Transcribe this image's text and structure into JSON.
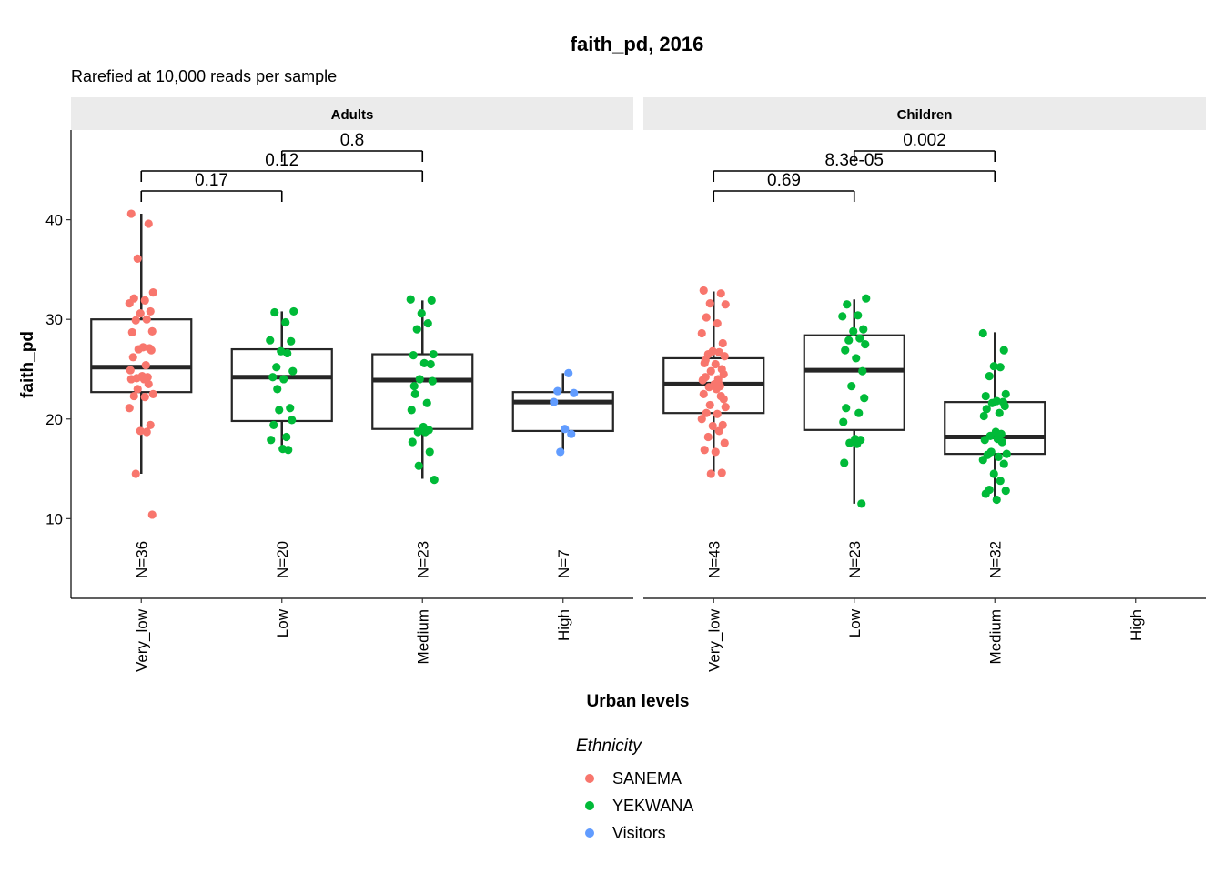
{
  "chart_data": {
    "type": "box",
    "title": "faith_pd, 2016",
    "subtitle": "Rarefied at 10,000 reads per sample",
    "xlabel": "Urban levels",
    "ylabel": "faith_pd",
    "ylim": [
      2,
      49
    ],
    "yticks": [
      10,
      20,
      30,
      40
    ],
    "categories": [
      "Very_low",
      "Low",
      "Medium",
      "High"
    ],
    "legend": {
      "title": "Ethnicity",
      "position": "bottom",
      "items": [
        {
          "name": "SANEMA",
          "color": "#F8766D"
        },
        {
          "name": "YEKWANA",
          "color": "#00BA38"
        },
        {
          "name": "Visitors",
          "color": "#619CFF"
        }
      ]
    },
    "panels": [
      {
        "label": "Adults",
        "groups": [
          {
            "category": "Very_low",
            "n_label": "N=36",
            "ethnicity": "SANEMA",
            "box": {
              "min": 14.5,
              "q1": 22.7,
              "median": 25.2,
              "q3": 30.0,
              "max": 40.6
            },
            "points": [
              40.6,
              39.6,
              36.1,
              32.7,
              32.1,
              31.9,
              31.6,
              30.8,
              30.6,
              30.0,
              29.9,
              28.8,
              28.7,
              27.2,
              27.1,
              27.0,
              26.9,
              26.2,
              25.4,
              24.9,
              24.3,
              24.2,
              24.1,
              24.0,
              24.0,
              23.5,
              23.0,
              22.5,
              22.3,
              22.2,
              21.1,
              19.4,
              18.8,
              18.7,
              14.5,
              10.4
            ]
          },
          {
            "category": "Low",
            "n_label": "N=20",
            "ethnicity": "YEKWANA",
            "box": {
              "min": 17.0,
              "q1": 19.8,
              "median": 24.2,
              "q3": 27.0,
              "max": 30.8
            },
            "points": [
              30.8,
              30.7,
              29.7,
              27.9,
              27.8,
              26.8,
              26.6,
              25.2,
              24.8,
              24.2,
              24.0,
              21.1,
              20.9,
              19.9,
              19.4,
              18.2,
              17.9,
              17.0,
              16.9,
              23.0
            ]
          },
          {
            "category": "Medium",
            "n_label": "N=23",
            "ethnicity": "YEKWANA",
            "box": {
              "min": 14.0,
              "q1": 19.0,
              "median": 23.9,
              "q3": 26.5,
              "max": 31.9
            },
            "points": [
              32.0,
              31.9,
              30.6,
              29.6,
              29.0,
              26.5,
              26.4,
              25.6,
              25.5,
              24.0,
              23.8,
              23.3,
              21.6,
              20.9,
              19.2,
              18.9,
              18.7,
              18.7,
              17.7,
              16.7,
              15.3,
              13.9,
              22.5
            ]
          },
          {
            "category": "High",
            "n_label": "N=7",
            "ethnicity": "Visitors",
            "box": {
              "min": 16.8,
              "q1": 18.8,
              "median": 21.7,
              "q3": 22.7,
              "max": 24.6
            },
            "points": [
              24.6,
              22.8,
              22.6,
              21.7,
              19.0,
              18.5,
              16.7
            ]
          }
        ],
        "comparisons": [
          {
            "from": "Medium",
            "to": "Low",
            "p": "0.8"
          },
          {
            "from": "Very_low",
            "to": "Medium",
            "p": "0.12"
          },
          {
            "from": "Very_low",
            "to": "Low",
            "p": "0.17"
          }
        ]
      },
      {
        "label": "Children",
        "groups": [
          {
            "category": "Very_low",
            "n_label": "N=43",
            "ethnicity": "SANEMA",
            "box": {
              "min": 14.6,
              "q1": 20.6,
              "median": 23.5,
              "q3": 26.1,
              "max": 32.8
            },
            "points": [
              32.9,
              32.6,
              31.6,
              31.5,
              30.2,
              29.6,
              28.6,
              27.6,
              26.8,
              26.7,
              26.5,
              26.3,
              25.6,
              25.5,
              25.0,
              24.8,
              24.5,
              24.2,
              24.0,
              23.9,
              23.5,
              23.3,
              23.2,
              23.0,
              22.5,
              22.3,
              21.4,
              21.2,
              20.6,
              20.5,
              20.0,
              19.4,
              19.3,
              18.8,
              18.2,
              17.6,
              16.9,
              16.7,
              14.6,
              14.5,
              22.0,
              25.9,
              23.7
            ]
          },
          {
            "category": "Low",
            "n_label": "N=23",
            "ethnicity": "YEKWANA",
            "box": {
              "min": 11.5,
              "q1": 18.9,
              "median": 24.9,
              "q3": 28.4,
              "max": 32.0
            },
            "points": [
              32.1,
              31.5,
              30.4,
              30.3,
              29.0,
              28.8,
              28.1,
              27.9,
              27.5,
              26.9,
              26.1,
              24.8,
              23.3,
              22.1,
              21.1,
              20.6,
              19.7,
              18.0,
              17.9,
              17.6,
              17.5,
              15.6,
              11.5
            ]
          },
          {
            "category": "Medium",
            "n_label": "N=32",
            "ethnicity": "YEKWANA",
            "box": {
              "min": 11.9,
              "q1": 16.5,
              "median": 18.2,
              "q3": 21.7,
              "max": 28.7
            },
            "points": [
              28.6,
              26.9,
              25.3,
              25.2,
              24.3,
              22.5,
              22.3,
              21.8,
              21.7,
              21.6,
              21.3,
              21.0,
              20.6,
              20.3,
              18.7,
              18.5,
              18.3,
              18.0,
              17.9,
              17.7,
              16.7,
              16.5,
              16.4,
              16.2,
              15.9,
              15.5,
              14.5,
              13.8,
              12.9,
              12.8,
              12.5,
              11.9
            ]
          }
        ],
        "comparisons": [
          {
            "from": "Low",
            "to": "Medium",
            "p": "0.002"
          },
          {
            "from": "Very_low",
            "to": "Medium",
            "p": "8.3e-05"
          },
          {
            "from": "Very_low",
            "to": "Low",
            "p": "0.69"
          }
        ]
      }
    ]
  }
}
